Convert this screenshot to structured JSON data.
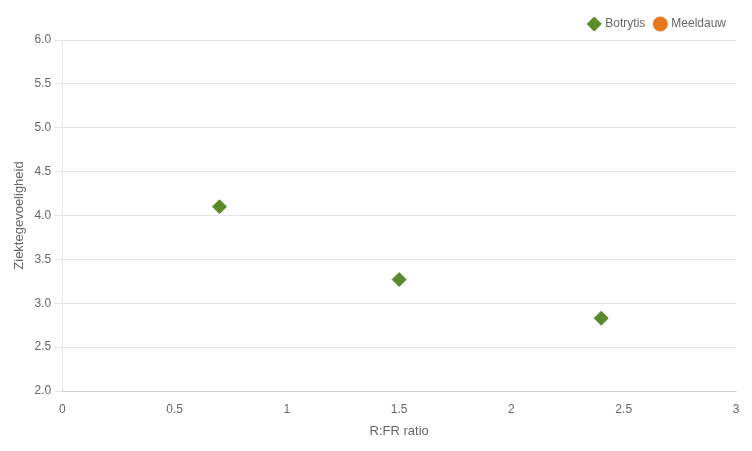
{
  "chart_data": {
    "type": "scatter",
    "xlabel": "R:FR ratio",
    "ylabel": "Ziektegevoeligheid",
    "series": [
      {
        "name": "Botrytis",
        "color": "#5B8A2D",
        "marker": "diamond",
        "x": [
          0.7,
          1.5,
          2.4
        ],
        "values": [
          4.1,
          3.27,
          2.83
        ]
      },
      {
        "name": "Meeldauw",
        "color": "#E87722",
        "marker": "circle",
        "x": [],
        "values": []
      }
    ],
    "xlim": [
      0,
      3
    ],
    "ylim": [
      2.0,
      6.0
    ],
    "xticks": [
      0,
      0.5,
      1,
      1.5,
      2,
      2.5,
      3
    ],
    "yticks": [
      {
        "value": 2,
        "label": "2.0"
      },
      2.5,
      {
        "value": 3,
        "label": "3.0"
      },
      3.5,
      {
        "value": 4,
        "label": "4.0"
      },
      4.5,
      {
        "value": 5,
        "label": "5.0"
      },
      5.5,
      {
        "value": 6,
        "label": "6.0"
      }
    ],
    "grid": "y",
    "legend": "upper right"
  }
}
